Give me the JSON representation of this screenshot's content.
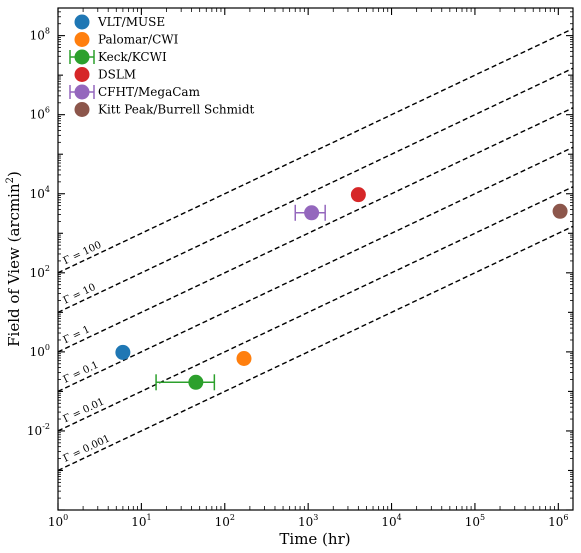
{
  "chart_data": {
    "type": "scatter",
    "title": "",
    "xlabel": "Time (hr)",
    "ylabel": "Field of View (arcmin",
    "ylabel_sup": "2",
    "ylabel_close": ")",
    "xscale": "log",
    "yscale": "log",
    "xlim": [
      1,
      1500000
    ],
    "ylim": [
      0.0001,
      500000000
    ],
    "x_tick_exponents": [
      0,
      1,
      2,
      3,
      4,
      5,
      6
    ],
    "y_tick_exponents": [
      -2,
      0,
      2,
      4,
      6,
      8
    ],
    "tick_base": "10",
    "grid": false,
    "legend_position": "top-left",
    "series": [
      {
        "name": "VLT/MUSE",
        "color": "#1f77b4",
        "x": 6,
        "y": 0.97,
        "xerr": null
      },
      {
        "name": "Palomar/CWI",
        "color": "#ff7f0e",
        "x": 170,
        "y": 0.68,
        "xerr": null
      },
      {
        "name": "Keck/KCWI",
        "color": "#2ca02c",
        "x": 45,
        "y": 0.17,
        "xerr": [
          15,
          75
        ]
      },
      {
        "name": "DSLM",
        "color": "#d62728",
        "x": 4000,
        "y": 9500,
        "xerr": null
      },
      {
        "name": "CFHT/MegaCam",
        "color": "#9467bd",
        "x": 1100,
        "y": 3300,
        "xerr": [
          700,
          1600
        ]
      },
      {
        "name": "Kitt Peak/Burrell Schmidt",
        "color": "#8c564b",
        "x": 1050000,
        "y": 3600,
        "xerr": null
      }
    ],
    "reference_lines": [
      {
        "gamma": 100,
        "label": "Γ = 100",
        "intercept": 100
      },
      {
        "gamma": 10,
        "label": "Γ = 10",
        "intercept": 10
      },
      {
        "gamma": 1,
        "label": "Γ = 1",
        "intercept": 1
      },
      {
        "gamma": 0.1,
        "label": "Γ = 0.1",
        "intercept": 0.1
      },
      {
        "gamma": 0.01,
        "label": "Γ = 0.01",
        "intercept": 0.01
      },
      {
        "gamma": 0.001,
        "label": "Γ = 0.001",
        "intercept": 0.001
      }
    ],
    "reference_line_slope": 1
  }
}
